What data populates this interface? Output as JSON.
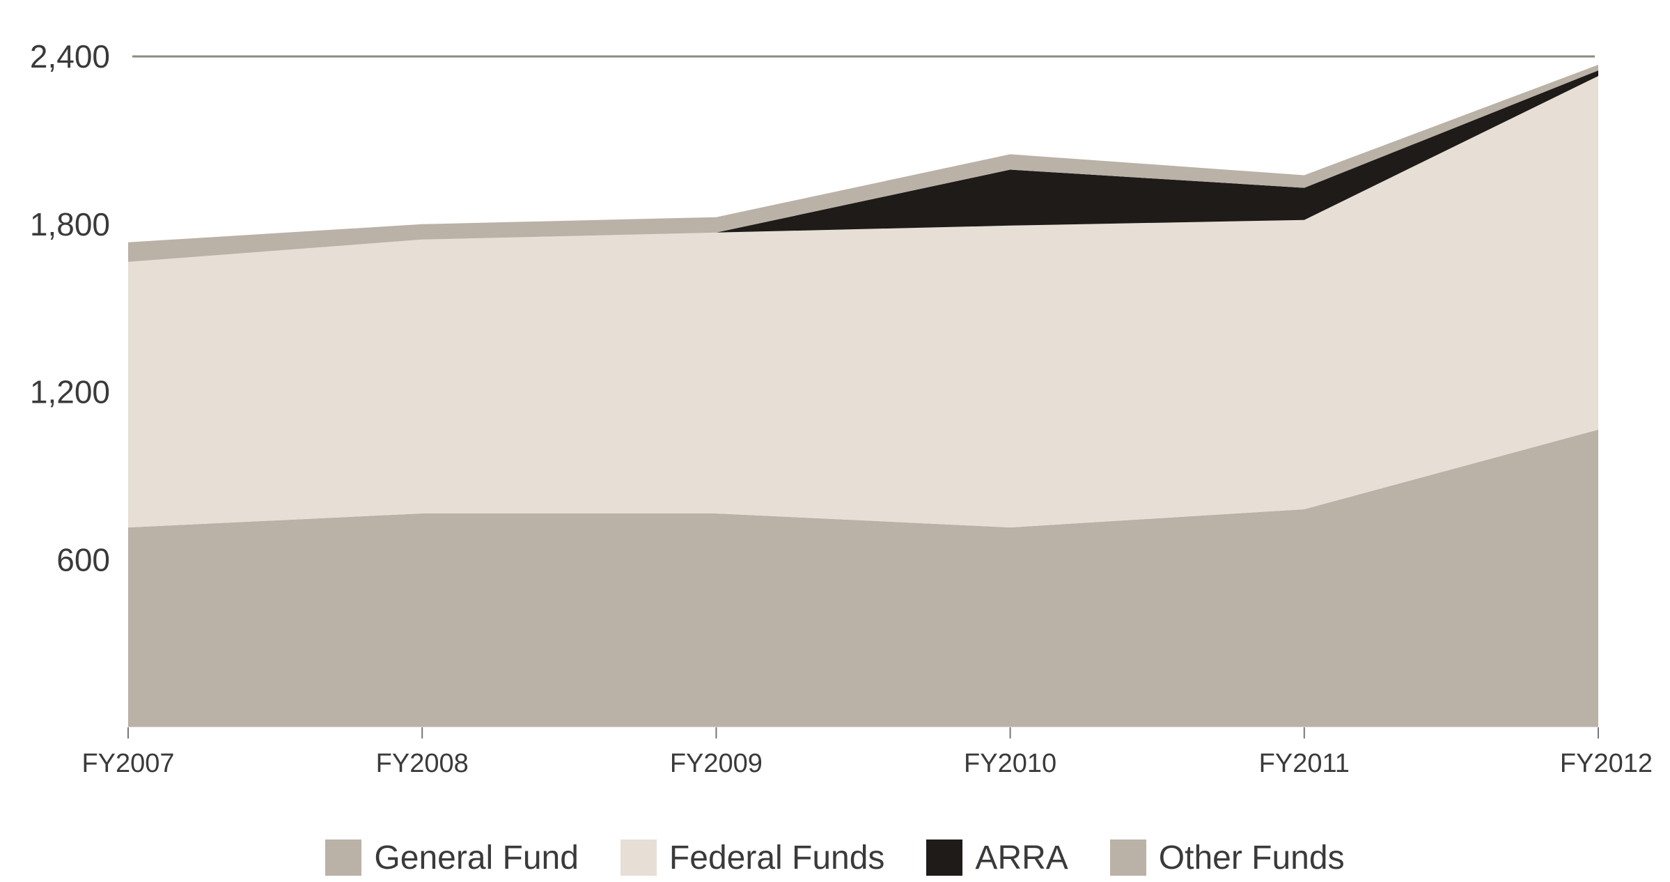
{
  "chart_data": {
    "type": "area",
    "stacked": true,
    "categories": [
      "FY2007",
      "FY2008",
      "FY2009",
      "FY2010",
      "FY2011",
      "FY2012"
    ],
    "ylim": [
      0,
      2400
    ],
    "yticks": [
      600,
      1200,
      1800,
      2400
    ],
    "ytick_labels": [
      "600",
      "1,200",
      "1,800",
      "2,400"
    ],
    "series": [
      {
        "name": "General Fund",
        "color": "#bab1a7",
        "values": [
          715,
          765,
          765,
          715,
          780,
          1065
        ]
      },
      {
        "name": "Federal Funds",
        "color": "#e7ded5",
        "values": [
          950,
          980,
          1005,
          1080,
          1035,
          1265
        ]
      },
      {
        "name": "ARRA",
        "color": "#1e1b19",
        "values": [
          0,
          0,
          0,
          200,
          115,
          20
        ]
      },
      {
        "name": "Other Funds",
        "color": "#bab1a7",
        "values": [
          70,
          55,
          55,
          55,
          45,
          20
        ]
      }
    ],
    "title": "",
    "xlabel": "",
    "ylabel": "",
    "legend_position": "bottom-center"
  }
}
